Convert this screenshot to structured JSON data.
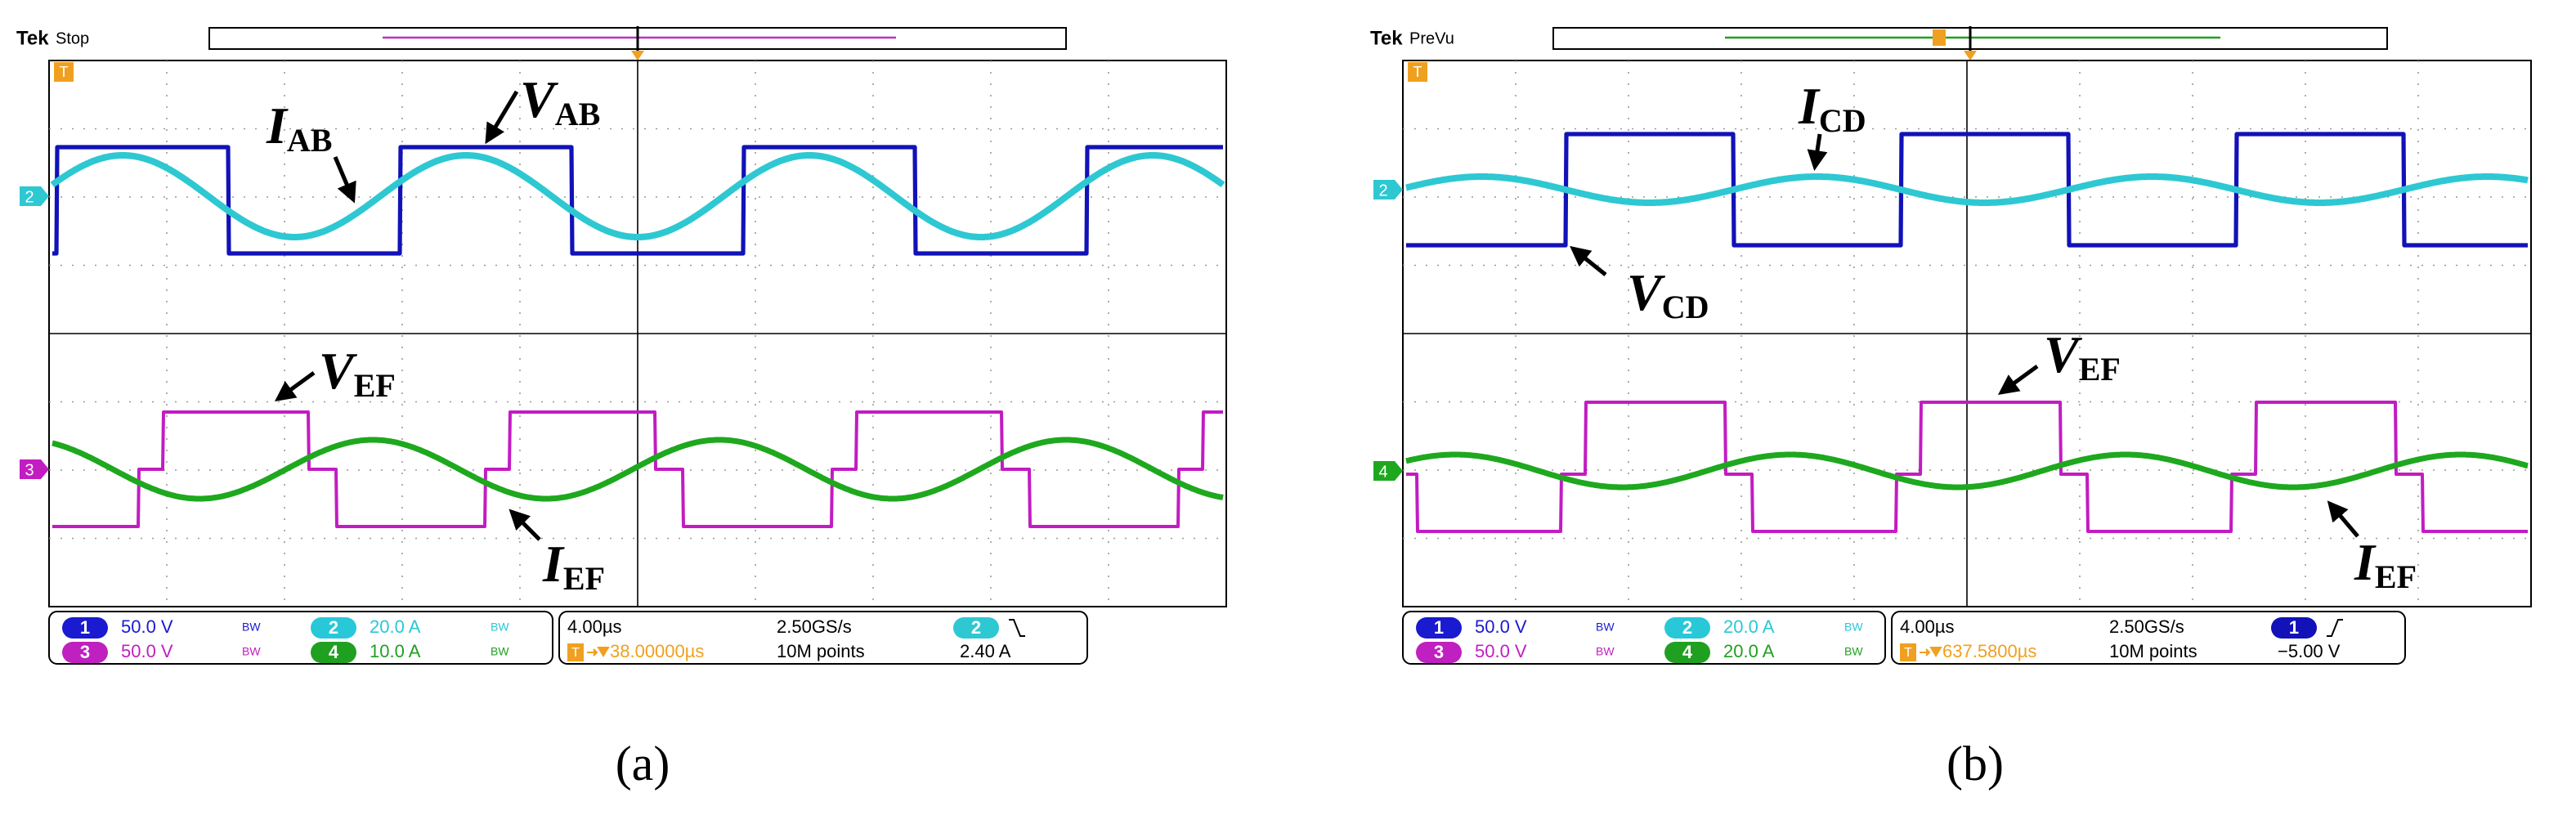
{
  "panels": [
    {
      "status": {
        "brand": "Tek",
        "mode": "Stop"
      },
      "markers": {
        "trigger": "T",
        "upper": "2",
        "lower": "3"
      },
      "annotations": [
        {
          "main": "I",
          "sub": "AB"
        },
        {
          "main": "V",
          "sub": "AB"
        },
        {
          "main": "V",
          "sub": "EF"
        },
        {
          "main": "I",
          "sub": "EF"
        }
      ],
      "readout": {
        "channels": [
          {
            "id": "1",
            "scale": "50.0 V",
            "bw": "BW",
            "color": "#1a1ad0"
          },
          {
            "id": "2",
            "scale": "20.0 A",
            "bw": "BW",
            "color": "#28c8d8"
          },
          {
            "id": "3",
            "scale": "50.0 V",
            "bw": "BW",
            "color": "#c020c0"
          },
          {
            "id": "4",
            "scale": "10.0 A",
            "bw": "BW",
            "color": "#20a020"
          }
        ],
        "timebase": "4.00µs",
        "sample_rate": "2.50GS/s",
        "trigger_delay": "38.00000µs",
        "record_length": "10M points",
        "trigger_source": "2",
        "trigger_level": "2.40 A"
      },
      "caption": "(a)"
    },
    {
      "status": {
        "brand": "Tek",
        "mode": "PreVu"
      },
      "markers": {
        "trigger": "T",
        "upper": "2",
        "lower": "4"
      },
      "annotations": [
        {
          "main": "I",
          "sub": "CD"
        },
        {
          "main": "V",
          "sub": "CD"
        },
        {
          "main": "V",
          "sub": "EF"
        },
        {
          "main": "I",
          "sub": "EF"
        }
      ],
      "readout": {
        "channels": [
          {
            "id": "1",
            "scale": "50.0 V",
            "bw": "BW",
            "color": "#1a1ad0"
          },
          {
            "id": "2",
            "scale": "20.0 A",
            "bw": "BW",
            "color": "#28c8d8"
          },
          {
            "id": "3",
            "scale": "50.0 V",
            "bw": "BW",
            "color": "#c020c0"
          },
          {
            "id": "4",
            "scale": "20.0 A",
            "bw": "BW",
            "color": "#20a020"
          }
        ],
        "timebase": "4.00µs",
        "sample_rate": "2.50GS/s",
        "trigger_delay": "637.5800µs",
        "record_length": "10M points",
        "trigger_source": "1",
        "trigger_level": "−5.00 V"
      },
      "caption": "(b)"
    }
  ]
}
